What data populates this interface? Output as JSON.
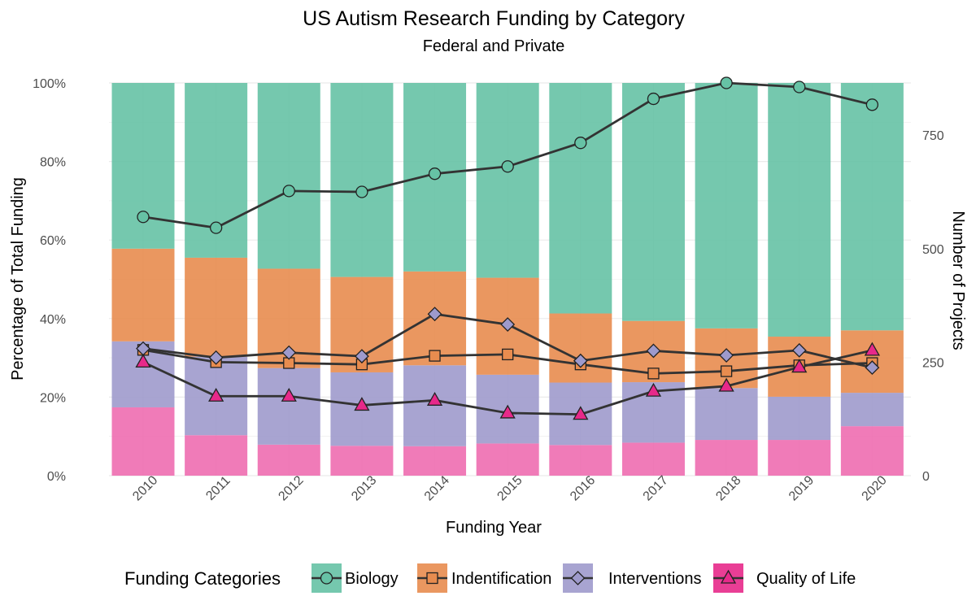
{
  "chart_data": {
    "type": "bar",
    "title": "US Autism Research Funding by Category",
    "subtitle": "Federal and Private",
    "xlabel": "Funding Year",
    "ylabel": "Percentage of Total Funding",
    "y2label": "Number of Projects",
    "categories": [
      "2010",
      "2011",
      "2012",
      "2013",
      "2014",
      "2015",
      "2016",
      "2017",
      "2018",
      "2019",
      "2020"
    ],
    "ylim": [
      0,
      100
    ],
    "y_ticks": [
      "0%",
      "20%",
      "40%",
      "60%",
      "80%",
      "100%"
    ],
    "y2lim": [
      0,
      865
    ],
    "y2_ticks": [
      "0",
      "250",
      "500",
      "750"
    ],
    "grid": true,
    "legend_title": "Funding Categories",
    "legend_position": "bottom",
    "bar_stack_order": [
      "Quality of Life",
      "Interventions",
      "Indentification",
      "Biology"
    ],
    "bar_series": [
      {
        "name": "Biology",
        "color": "#66C2A5",
        "values": [
          42.2,
          44.5,
          47.3,
          49.4,
          48.0,
          49.6,
          58.7,
          60.6,
          62.5,
          64.6,
          63.0
        ]
      },
      {
        "name": "Indentification",
        "color": "#E88C4F",
        "values": [
          23.6,
          25.2,
          25.3,
          24.3,
          23.9,
          24.7,
          17.6,
          15.6,
          15.2,
          15.3,
          15.9
        ]
      },
      {
        "name": "Interventions",
        "color": "#9E9ACC",
        "values": [
          16.8,
          20.0,
          19.5,
          18.7,
          20.6,
          17.5,
          15.9,
          15.4,
          13.2,
          11.0,
          8.5
        ]
      },
      {
        "name": "Quality of Life",
        "color": "#EE6DB0",
        "values": [
          17.4,
          10.3,
          7.9,
          7.6,
          7.5,
          8.2,
          7.8,
          8.4,
          9.1,
          9.1,
          12.6
        ]
      }
    ],
    "line_series": [
      {
        "name": "Biology",
        "marker": "circle",
        "color": "#66C2A5",
        "values": [
          570,
          546,
          627,
          625,
          665,
          681,
          733,
          830,
          865,
          856,
          817
        ]
      },
      {
        "name": "Indentification",
        "marker": "square",
        "color": "#E88C4F",
        "values": [
          277,
          250,
          248,
          245,
          264,
          267,
          245,
          225,
          230,
          243,
          248
        ]
      },
      {
        "name": "Interventions",
        "marker": "diamond",
        "color": "#9E9ACC",
        "values": [
          280,
          260,
          271,
          263,
          356,
          333,
          253,
          275,
          265,
          276,
          238
        ]
      },
      {
        "name": "Quality of Life",
        "marker": "triangle",
        "color": "#E7298A",
        "values": [
          250,
          175,
          175,
          155,
          166,
          138,
          135,
          186,
          197,
          239,
          276
        ]
      }
    ]
  }
}
